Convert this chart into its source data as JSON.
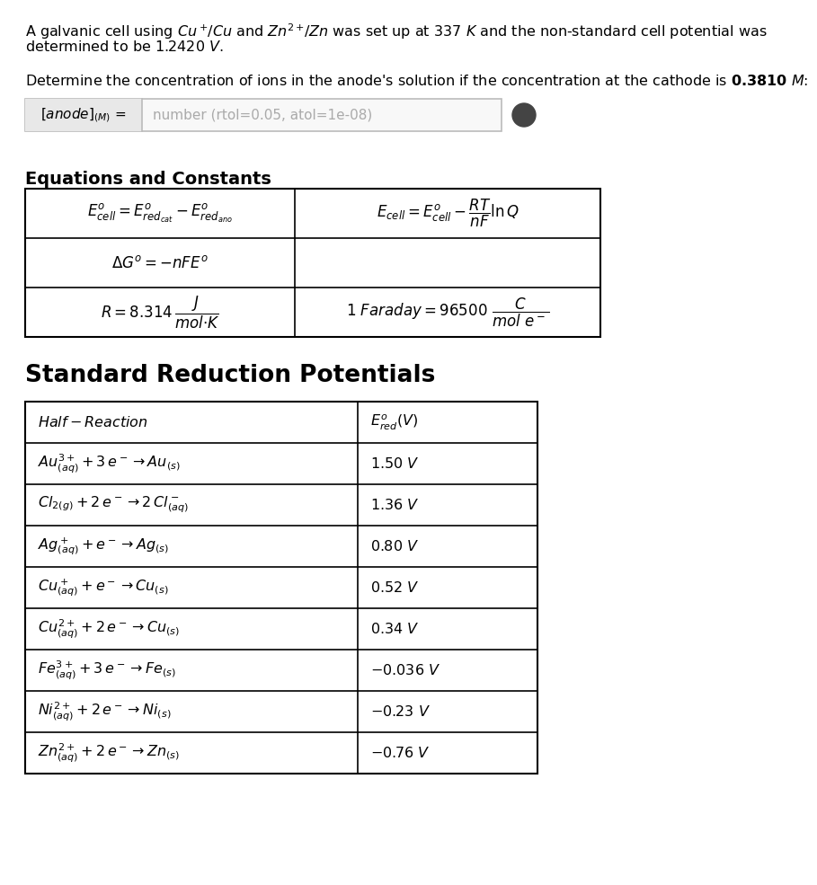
{
  "bg_color": "#ffffff",
  "text_color": "#000000",
  "line1": "A galvanic cell using $\\mathit{Cu^+\\!/Cu}$ and $\\mathit{Zn^{2+}\\!/Zn}$ was set up at $\\mathit{337\\ K}$ and the non-standard cell potential was",
  "line2": "determined to be $\\mathit{1.2420\\ V}$.",
  "question": "Determine the concentration of ions in the anode's solution if the concentration at the cathode is $\\mathbf{0.3810}\\ M$:",
  "input_label": "$[anode]_{(M)}$ =",
  "input_placeholder": "number (rtol=0.05, atol=1e-08)",
  "eq_title": "Equations and Constants",
  "srp_title": "Standard Reduction Potentials",
  "eq_content": [
    [
      "$E^o_{cell} = E^o_{red_{cat}} - E^o_{red_{ano}}$",
      "$E_{cell} = E^o_{cell} - \\dfrac{RT}{nF}\\ln Q$"
    ],
    [
      "$\\Delta G^o = -nFE^o$",
      ""
    ],
    [
      "$R = 8.314\\,\\dfrac{J}{mol{\\cdot}K}$",
      "$1\\ Faraday = 96500\\ \\dfrac{C}{mol\\ e^-}$"
    ]
  ],
  "srp_rows": [
    [
      "$Half - Reaction$",
      "$E^o_{red}(V)$"
    ],
    [
      "$Au^{3+}_{(aq)} + 3\\,e^- \\rightarrow Au_{(s)}$",
      "$1.50\\ V$"
    ],
    [
      "$Cl_{2(g)} + 2\\,e^- \\rightarrow 2\\,Cl^-_{(aq)}$",
      "$1.36\\ V$"
    ],
    [
      "$Ag^+_{(aq)} + e^- \\rightarrow Ag_{(s)}$",
      "$0.80\\ V$"
    ],
    [
      "$Cu^+_{(aq)} + e^- \\rightarrow Cu_{(s)}$",
      "$0.52\\ V$"
    ],
    [
      "$Cu^{2+}_{(aq)} + 2\\,e^- \\rightarrow Cu_{(s)}$",
      "$0.34\\ V$"
    ],
    [
      "$Fe^{3+}_{(aq)} + 3\\,e^- \\rightarrow Fe_{(s)}$",
      "$-0.036\\ V$"
    ],
    [
      "$Ni^{2+}_{(aq)} + 2\\,e^- \\rightarrow Ni_{(s)}$",
      "$-0.23\\ V$"
    ],
    [
      "$Zn^{2+}_{(aq)} + 2\\,e^- \\rightarrow Zn_{(s)}$",
      "$-0.76\\ V$"
    ]
  ]
}
